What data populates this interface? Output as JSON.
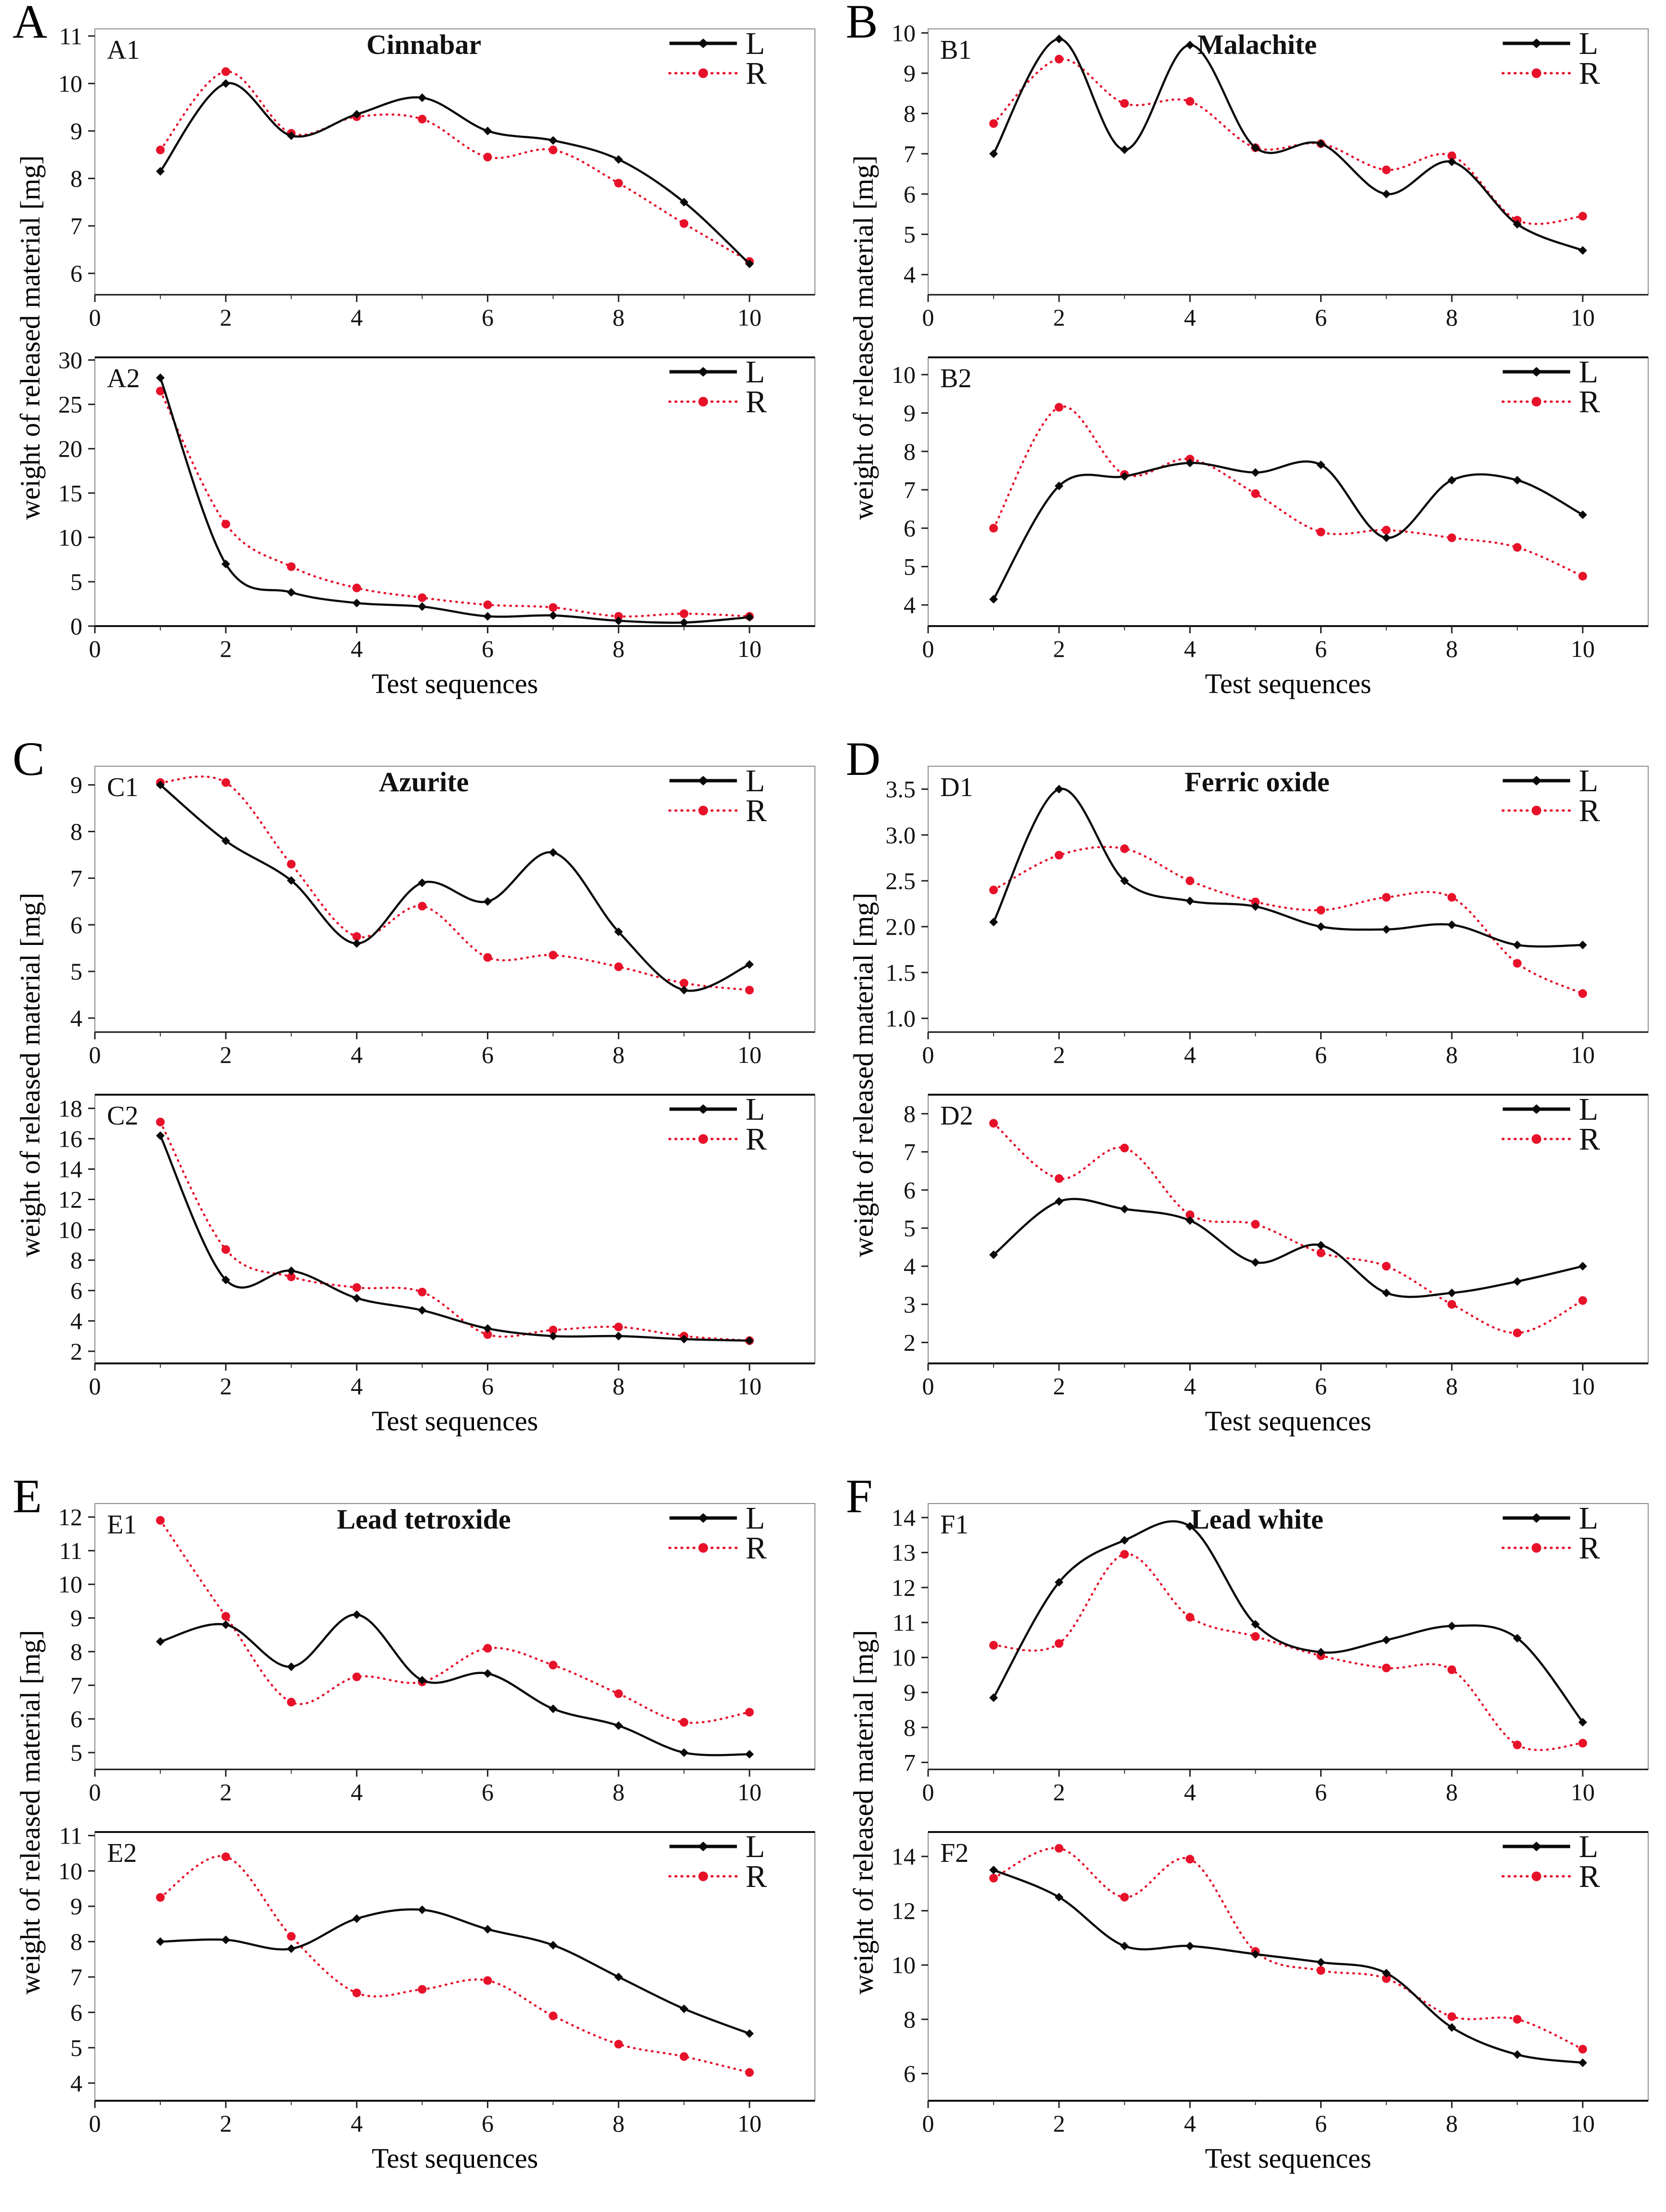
{
  "figure": {
    "ylabel": "weight of released material [mg]",
    "xlabel": "Test sequences",
    "colors": {
      "L": "#0a0a0a",
      "R": "#e8112a"
    },
    "legend": {
      "l_label": "L",
      "r_label": "R"
    },
    "series_styles": {
      "L": {
        "line": "solid",
        "marker": "diamond",
        "color": "#0a0a0a"
      },
      "R": {
        "line": "dotted",
        "marker": "circle",
        "color": "#e8112a"
      }
    },
    "xticks": [
      0,
      2,
      4,
      6,
      8,
      10
    ],
    "xticks_minor": [
      1,
      3,
      5,
      7,
      9
    ],
    "xlim": [
      0,
      11
    ]
  },
  "chart_data": [
    {
      "id": "A1",
      "group": "A",
      "title": "Cinnabar",
      "type": "line",
      "x": [
        1,
        2,
        3,
        4,
        5,
        6,
        7,
        8,
        9,
        10
      ],
      "series": [
        {
          "name": "L",
          "values": [
            8.15,
            10.0,
            8.9,
            9.35,
            9.7,
            9.0,
            8.8,
            8.4,
            7.5,
            6.2
          ]
        },
        {
          "name": "R",
          "values": [
            8.6,
            10.25,
            8.95,
            9.3,
            9.25,
            8.45,
            8.6,
            7.9,
            7.05,
            6.25
          ]
        }
      ],
      "yticks": [
        6,
        7,
        8,
        9,
        10,
        11
      ],
      "ylim": [
        5.55,
        11.15
      ],
      "decimals": 0
    },
    {
      "id": "A2",
      "group": "A",
      "title": "",
      "type": "line",
      "x": [
        1,
        2,
        3,
        4,
        5,
        6,
        7,
        8,
        9,
        10
      ],
      "series": [
        {
          "name": "L",
          "values": [
            28.0,
            7.0,
            3.8,
            2.6,
            2.2,
            1.1,
            1.2,
            0.6,
            0.4,
            1.0
          ]
        },
        {
          "name": "R",
          "values": [
            26.5,
            11.5,
            6.7,
            4.3,
            3.2,
            2.4,
            2.1,
            1.1,
            1.4,
            1.1
          ]
        }
      ],
      "yticks": [
        0,
        5,
        10,
        15,
        20,
        25,
        30
      ],
      "ylim": [
        0,
        30.3
      ],
      "decimals": 0
    },
    {
      "id": "B1",
      "group": "B",
      "title": "Malachite",
      "type": "line",
      "x": [
        1,
        2,
        3,
        4,
        5,
        6,
        7,
        8,
        9,
        10
      ],
      "series": [
        {
          "name": "L",
          "values": [
            7.0,
            9.85,
            7.1,
            9.7,
            7.15,
            7.25,
            6.0,
            6.8,
            5.25,
            4.6
          ]
        },
        {
          "name": "R",
          "values": [
            7.75,
            9.35,
            8.25,
            8.3,
            7.15,
            7.25,
            6.6,
            6.95,
            5.35,
            5.45
          ]
        }
      ],
      "yticks": [
        4,
        5,
        6,
        7,
        8,
        9,
        10
      ],
      "ylim": [
        3.5,
        10.1
      ],
      "decimals": 0
    },
    {
      "id": "B2",
      "group": "B",
      "title": "",
      "type": "line",
      "x": [
        1,
        2,
        3,
        4,
        5,
        6,
        7,
        8,
        9,
        10
      ],
      "series": [
        {
          "name": "L",
          "values": [
            4.15,
            7.1,
            7.35,
            7.7,
            7.45,
            7.65,
            5.75,
            7.25,
            7.25,
            6.35
          ]
        },
        {
          "name": "R",
          "values": [
            6.0,
            9.15,
            7.4,
            7.8,
            6.9,
            5.9,
            5.95,
            5.75,
            5.5,
            4.75
          ]
        }
      ],
      "yticks": [
        4,
        5,
        6,
        7,
        8,
        9,
        10
      ],
      "ylim": [
        3.45,
        10.45
      ],
      "decimals": 0
    },
    {
      "id": "C1",
      "group": "C",
      "title": "Azurite",
      "type": "line",
      "x": [
        1,
        2,
        3,
        4,
        5,
        6,
        7,
        8,
        9,
        10
      ],
      "series": [
        {
          "name": "L",
          "values": [
            9.0,
            7.8,
            6.95,
            5.6,
            6.9,
            6.5,
            7.55,
            5.85,
            4.6,
            5.15
          ]
        },
        {
          "name": "R",
          "values": [
            9.05,
            9.05,
            7.3,
            5.75,
            6.4,
            5.3,
            5.35,
            5.1,
            4.75,
            4.6
          ]
        }
      ],
      "yticks": [
        4,
        5,
        6,
        7,
        8,
        9
      ],
      "ylim": [
        3.7,
        9.4
      ],
      "decimals": 0
    },
    {
      "id": "C2",
      "group": "C",
      "title": "",
      "type": "line",
      "x": [
        1,
        2,
        3,
        4,
        5,
        6,
        7,
        8,
        9,
        10
      ],
      "series": [
        {
          "name": "L",
          "values": [
            16.2,
            6.7,
            7.3,
            5.5,
            4.7,
            3.5,
            3.0,
            3.0,
            2.8,
            2.7
          ]
        },
        {
          "name": "R",
          "values": [
            17.1,
            8.7,
            6.9,
            6.2,
            5.9,
            3.1,
            3.4,
            3.6,
            3.0,
            2.7
          ]
        }
      ],
      "yticks": [
        2,
        4,
        6,
        8,
        10,
        12,
        14,
        16,
        18
      ],
      "ylim": [
        1.2,
        18.9
      ],
      "decimals": 0
    },
    {
      "id": "D1",
      "group": "D",
      "title": "Ferric oxide",
      "type": "line",
      "x": [
        1,
        2,
        3,
        4,
        5,
        6,
        7,
        8,
        9,
        10
      ],
      "series": [
        {
          "name": "L",
          "values": [
            2.05,
            3.5,
            2.5,
            2.28,
            2.22,
            2.0,
            1.97,
            2.02,
            1.8,
            1.8
          ]
        },
        {
          "name": "R",
          "values": [
            2.4,
            2.78,
            2.85,
            2.5,
            2.27,
            2.18,
            2.32,
            2.32,
            1.6,
            1.27
          ]
        }
      ],
      "yticks": [
        1.0,
        1.5,
        2.0,
        2.5,
        3.0,
        3.5
      ],
      "ylim": [
        0.85,
        3.75
      ],
      "decimals": 1
    },
    {
      "id": "D2",
      "group": "D",
      "title": "",
      "type": "line",
      "x": [
        1,
        2,
        3,
        4,
        5,
        6,
        7,
        8,
        9,
        10
      ],
      "series": [
        {
          "name": "L",
          "values": [
            4.3,
            5.7,
            5.5,
            5.2,
            4.1,
            4.55,
            3.3,
            3.3,
            3.6,
            4.0
          ]
        },
        {
          "name": "R",
          "values": [
            7.75,
            6.3,
            7.1,
            5.35,
            5.1,
            4.35,
            4.0,
            3.0,
            2.25,
            3.1
          ]
        }
      ],
      "yticks": [
        2,
        3,
        4,
        5,
        6,
        7,
        8
      ],
      "ylim": [
        1.45,
        8.5
      ],
      "decimals": 0
    },
    {
      "id": "E1",
      "group": "E",
      "title": "Lead tetroxide",
      "type": "line",
      "x": [
        1,
        2,
        3,
        4,
        5,
        6,
        7,
        8,
        9,
        10
      ],
      "series": [
        {
          "name": "L",
          "values": [
            8.3,
            8.8,
            7.55,
            9.1,
            7.15,
            7.35,
            6.3,
            5.8,
            5.0,
            4.95
          ]
        },
        {
          "name": "R",
          "values": [
            11.9,
            9.05,
            6.5,
            7.25,
            7.1,
            8.1,
            7.6,
            6.75,
            5.9,
            6.2
          ]
        }
      ],
      "yticks": [
        5,
        6,
        7,
        8,
        9,
        10,
        11,
        12
      ],
      "ylim": [
        4.5,
        12.4
      ],
      "decimals": 0
    },
    {
      "id": "E2",
      "group": "E",
      "title": "",
      "type": "line",
      "x": [
        1,
        2,
        3,
        4,
        5,
        6,
        7,
        8,
        9,
        10
      ],
      "series": [
        {
          "name": "L",
          "values": [
            8.0,
            8.05,
            7.8,
            8.65,
            8.9,
            8.35,
            7.9,
            7.0,
            6.1,
            5.4
          ]
        },
        {
          "name": "R",
          "values": [
            9.25,
            10.4,
            8.15,
            6.55,
            6.65,
            6.9,
            5.9,
            5.1,
            4.75,
            4.3
          ]
        }
      ],
      "yticks": [
        4,
        5,
        6,
        7,
        8,
        9,
        10,
        11
      ],
      "ylim": [
        3.5,
        11.1
      ],
      "decimals": 0
    },
    {
      "id": "F1",
      "group": "F",
      "title": "Lead white",
      "type": "line",
      "x": [
        1,
        2,
        3,
        4,
        5,
        6,
        7,
        8,
        9,
        10
      ],
      "series": [
        {
          "name": "L",
          "values": [
            8.85,
            12.15,
            13.35,
            13.75,
            10.95,
            10.15,
            10.5,
            10.9,
            10.55,
            8.15
          ]
        },
        {
          "name": "R",
          "values": [
            10.35,
            10.4,
            12.95,
            11.15,
            10.6,
            10.05,
            9.7,
            9.65,
            7.5,
            7.55
          ]
        }
      ],
      "yticks": [
        7,
        8,
        9,
        10,
        11,
        12,
        13,
        14
      ],
      "ylim": [
        6.8,
        14.4
      ],
      "decimals": 0
    },
    {
      "id": "F2",
      "group": "F",
      "title": "",
      "type": "line",
      "x": [
        1,
        2,
        3,
        4,
        5,
        6,
        7,
        8,
        9,
        10
      ],
      "series": [
        {
          "name": "L",
          "values": [
            13.5,
            12.5,
            10.7,
            10.7,
            10.4,
            10.1,
            9.7,
            7.7,
            6.7,
            6.4
          ]
        },
        {
          "name": "R",
          "values": [
            13.2,
            14.3,
            12.5,
            13.9,
            10.5,
            9.8,
            9.5,
            8.1,
            8.0,
            6.9
          ]
        }
      ],
      "yticks": [
        6,
        8,
        10,
        12,
        14
      ],
      "ylim": [
        5.0,
        14.9
      ],
      "decimals": 0
    }
  ]
}
